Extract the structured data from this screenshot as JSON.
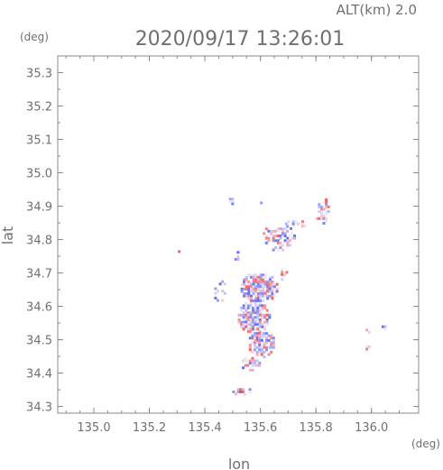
{
  "header": {
    "alt_label": "ALT(km) 2.0",
    "timestamp": "2020/09/17 13:26:01"
  },
  "chart_data": {
    "type": "heatmap",
    "title": "2020/09/17 13:26:01",
    "subtitle": "ALT(km) 2.0",
    "xlabel": "lon",
    "ylabel": "lat",
    "x_unit": "(deg)",
    "y_unit": "(deg)",
    "xlim": [
      134.87,
      136.17
    ],
    "ylim": [
      34.28,
      35.35
    ],
    "x_ticks": [
      "135.0",
      "135.2",
      "135.4",
      "135.6",
      "135.8",
      "136.0"
    ],
    "y_ticks": [
      "34.3",
      "34.4",
      "34.5",
      "34.6",
      "34.7",
      "34.8",
      "34.9",
      "35.0",
      "35.1",
      "35.2",
      "35.3"
    ],
    "grid": false,
    "colors": {
      "positive": "#f26b6b",
      "negative": "#6b78f2",
      "neutral": "#e9e9ff",
      "axis": "#8a8a8a"
    },
    "clusters": [
      {
        "lon": 135.59,
        "lat": 34.66,
        "rlon": 0.07,
        "rlat": 0.045,
        "density": 0.92
      },
      {
        "lon": 135.57,
        "lat": 34.57,
        "rlon": 0.06,
        "rlat": 0.05,
        "density": 0.85
      },
      {
        "lon": 135.6,
        "lat": 34.49,
        "rlon": 0.05,
        "rlat": 0.04,
        "density": 0.78
      },
      {
        "lon": 135.56,
        "lat": 34.43,
        "rlon": 0.035,
        "rlat": 0.025,
        "density": 0.55
      },
      {
        "lon": 135.53,
        "lat": 34.35,
        "rlon": 0.04,
        "rlat": 0.012,
        "density": 0.5
      },
      {
        "lon": 135.66,
        "lat": 34.81,
        "rlon": 0.06,
        "rlat": 0.04,
        "density": 0.55
      },
      {
        "lon": 135.82,
        "lat": 34.89,
        "rlon": 0.03,
        "rlat": 0.04,
        "density": 0.6
      },
      {
        "lon": 135.72,
        "lat": 34.85,
        "rlon": 0.04,
        "rlat": 0.015,
        "density": 0.45
      },
      {
        "lon": 135.49,
        "lat": 34.92,
        "rlon": 0.012,
        "rlat": 0.012,
        "density": 0.6
      },
      {
        "lon": 135.6,
        "lat": 34.92,
        "rlon": 0.01,
        "rlat": 0.008,
        "density": 0.7
      },
      {
        "lon": 135.51,
        "lat": 34.76,
        "rlon": 0.012,
        "rlat": 0.02,
        "density": 0.4
      },
      {
        "lon": 135.45,
        "lat": 34.65,
        "rlon": 0.025,
        "rlat": 0.035,
        "density": 0.35
      },
      {
        "lon": 135.98,
        "lat": 34.53,
        "rlon": 0.01,
        "rlat": 0.01,
        "density": 0.7
      },
      {
        "lon": 136.04,
        "lat": 34.54,
        "rlon": 0.012,
        "rlat": 0.01,
        "density": 0.7
      },
      {
        "lon": 135.98,
        "lat": 34.48,
        "rlon": 0.01,
        "rlat": 0.01,
        "density": 0.8
      },
      {
        "lon": 135.3,
        "lat": 34.77,
        "rlon": 0.006,
        "rlat": 0.005,
        "density": 0.8
      },
      {
        "lon": 135.68,
        "lat": 34.7,
        "rlon": 0.015,
        "rlat": 0.02,
        "density": 0.4
      }
    ]
  }
}
